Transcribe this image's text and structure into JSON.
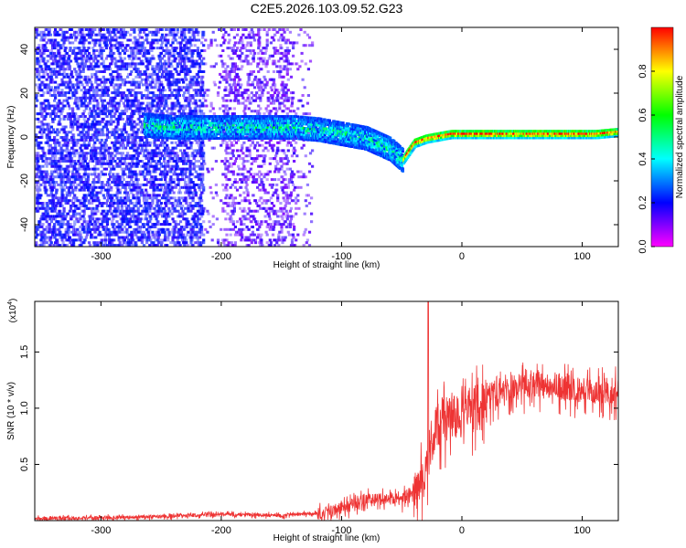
{
  "title": "C2E5.2026.103.09.52.G23",
  "chart_data": [
    {
      "type": "heatmap",
      "name": "spectrogram",
      "xlabel": "Height of straight line (km)",
      "ylabel": "Frequency (Hz)",
      "xlim": [
        -355,
        130
      ],
      "ylim": [
        -50,
        50
      ],
      "xticks": [
        -300,
        -200,
        -100,
        0,
        100
      ],
      "yticks": [
        -40,
        -20,
        0,
        20,
        40
      ],
      "colorbar": {
        "label": "Normalized spectral amplitude",
        "range": [
          0,
          1
        ],
        "ticks": [
          0.0,
          0.2,
          0.4,
          0.6,
          0.8
        ],
        "tick_labels": [
          "0.0",
          "0.2",
          "0.4",
          "0.6",
          "0.8"
        ],
        "colormap": [
          "#ff00ff",
          "#0000ff",
          "#00ffff",
          "#00ff00",
          "#ffff00",
          "#ff0000"
        ]
      },
      "signal_track": {
        "heights_km": [
          -265,
          -240,
          -220,
          -200,
          -180,
          -160,
          -140,
          -120,
          -100,
          -80,
          -60,
          -50,
          -40,
          -30,
          -20,
          -10,
          0,
          20,
          50,
          80,
          110,
          130
        ],
        "frequency_hz": [
          6,
          5,
          5,
          5,
          5,
          5,
          5,
          4,
          2,
          0,
          -5,
          -10,
          -2,
          0,
          1,
          2,
          2,
          2,
          2,
          2,
          2,
          3
        ]
      }
    },
    {
      "type": "line",
      "name": "snr",
      "xlabel": "Height of straight line (km)",
      "ylabel": "SNR (10 * v/v)",
      "multiplier_label": "(x10",
      "multiplier_exp": "4",
      "multiplier_close": ")",
      "xlim": [
        -355,
        130
      ],
      "ylim": [
        0,
        1.95
      ],
      "xticks": [
        -300,
        -200,
        -100,
        0,
        100
      ],
      "yticks": [
        0.5,
        1.0,
        1.5
      ],
      "ytick_labels": [
        "0.5",
        "1.0",
        "1.5"
      ],
      "color": "#ee3333",
      "trend": {
        "x": [
          -355,
          -300,
          -250,
          -200,
          -150,
          -120,
          -100,
          -80,
          -60,
          -50,
          -40,
          -35,
          -30,
          -25,
          -20,
          -10,
          0,
          10,
          20,
          40,
          60,
          80,
          100,
          130
        ],
        "y": [
          0.02,
          0.03,
          0.04,
          0.06,
          0.05,
          0.07,
          0.12,
          0.2,
          0.2,
          0.2,
          0.3,
          0.35,
          0.55,
          0.75,
          0.9,
          0.98,
          0.98,
          1.05,
          1.12,
          1.2,
          1.25,
          1.22,
          1.18,
          1.18
        ]
      },
      "spike": {
        "x": -28,
        "y": 1.95
      }
    }
  ]
}
